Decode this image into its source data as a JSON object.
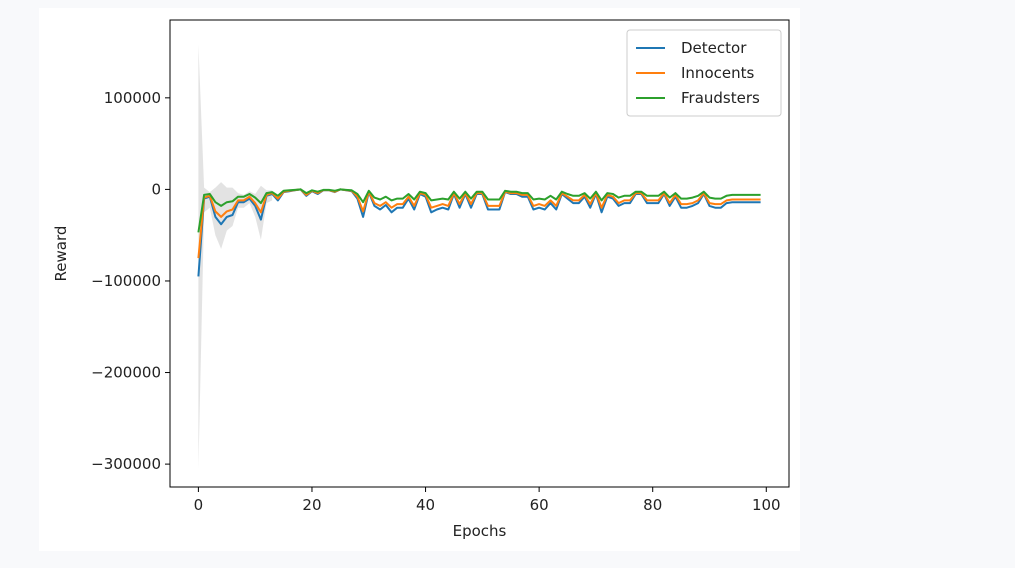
{
  "chart_data": {
    "type": "line",
    "title": "",
    "xlabel": "Epochs",
    "ylabel": "Reward",
    "xlim": [
      -5,
      104
    ],
    "ylim": [
      -325000,
      185000
    ],
    "x_ticks": [
      0,
      20,
      40,
      60,
      80,
      100
    ],
    "y_ticks": [
      100000,
      0,
      -100000,
      -200000,
      -300000
    ],
    "y_tick_labels": [
      "100000",
      "0",
      "−100000",
      "−200000",
      "−300000"
    ],
    "x_tick_labels": [
      "0",
      "20",
      "40",
      "60",
      "80",
      "100"
    ],
    "legend_position": "top-right",
    "band_color": "#cccccc",
    "band_note_x": [
      0,
      1,
      2,
      3,
      4,
      5,
      6,
      7,
      8,
      9,
      10,
      11,
      12,
      13
    ],
    "band_upper": [
      158000,
      2000,
      -3000,
      2000,
      8000,
      2000,
      2000,
      -4000,
      -6000,
      -2000,
      -5000,
      4000,
      -1000,
      -1000
    ],
    "band_lower": [
      -305000,
      -25000,
      -20000,
      -50000,
      -65000,
      -45000,
      -40000,
      -20000,
      -20000,
      -15000,
      -30000,
      -55000,
      -15000,
      -12000
    ],
    "series": [
      {
        "name": "Detector",
        "color": "#1f77b4",
        "values": [
          -95000,
          -10000,
          -8000,
          -30000,
          -38000,
          -30000,
          -28000,
          -14000,
          -14000,
          -10000,
          -18000,
          -33000,
          -7000,
          -5000,
          -12000,
          -3000,
          -2000,
          -1000,
          0,
          -7000,
          -2000,
          -5000,
          -1000,
          -1000,
          -3000,
          0,
          -1000,
          -2000,
          -10000,
          -30000,
          -3000,
          -18000,
          -22000,
          -17000,
          -25000,
          -20000,
          -20000,
          -10000,
          -22000,
          -5000,
          -8000,
          -25000,
          -22000,
          -20000,
          -22000,
          -5000,
          -20000,
          -5000,
          -20000,
          -5000,
          -5000,
          -22000,
          -22000,
          -22000,
          -3000,
          -5000,
          -5000,
          -8000,
          -8000,
          -22000,
          -20000,
          -22000,
          -15000,
          -22000,
          -5000,
          -10000,
          -15000,
          -15000,
          -8000,
          -20000,
          -5000,
          -25000,
          -8000,
          -10000,
          -18000,
          -15000,
          -15000,
          -5000,
          -5000,
          -15000,
          -15000,
          -15000,
          -5000,
          -18000,
          -8000,
          -20000,
          -20000,
          -18000,
          -15000,
          -5000,
          -18000,
          -20000,
          -20000,
          -15000,
          -14000,
          -14000,
          -14000,
          -14000,
          -14000,
          -14000
        ]
      },
      {
        "name": "Innocents",
        "color": "#ff7f0e",
        "values": [
          -75000,
          -9000,
          -7000,
          -24000,
          -30000,
          -24000,
          -22000,
          -12000,
          -12000,
          -8000,
          -15000,
          -25000,
          -6000,
          -4000,
          -10000,
          -2500,
          -1500,
          -800,
          0,
          -6000,
          -1500,
          -4000,
          -800,
          -800,
          -2500,
          0,
          -800,
          -1500,
          -8000,
          -24000,
          -2500,
          -15000,
          -18000,
          -14000,
          -20000,
          -16000,
          -16000,
          -8000,
          -18000,
          -4000,
          -6000,
          -20000,
          -18000,
          -16000,
          -18000,
          -4000,
          -16000,
          -4000,
          -16000,
          -4000,
          -4000,
          -18000,
          -18000,
          -18000,
          -2500,
          -4000,
          -4000,
          -6000,
          -6000,
          -18000,
          -16000,
          -18000,
          -12000,
          -18000,
          -4000,
          -8000,
          -12000,
          -12000,
          -6000,
          -16000,
          -4000,
          -20000,
          -6000,
          -8000,
          -15000,
          -12000,
          -12000,
          -4000,
          -4000,
          -12000,
          -12000,
          -12000,
          -4000,
          -15000,
          -6000,
          -16000,
          -16000,
          -15000,
          -12000,
          -4000,
          -15000,
          -16000,
          -16000,
          -12000,
          -11000,
          -11000,
          -11000,
          -11000,
          -11000,
          -11000
        ]
      },
      {
        "name": "Fraudsters",
        "color": "#2ca02c",
        "values": [
          -47000,
          -6000,
          -5000,
          -14000,
          -18000,
          -14000,
          -13000,
          -8000,
          -8000,
          -5000,
          -9000,
          -15000,
          -4000,
          -3000,
          -7000,
          -1500,
          -1000,
          -500,
          0,
          -4000,
          -1000,
          -2500,
          -500,
          -500,
          -1500,
          0,
          -500,
          -1000,
          -5000,
          -14000,
          -1500,
          -9000,
          -11000,
          -8000,
          -12000,
          -10000,
          -10000,
          -5000,
          -11000,
          -2500,
          -4000,
          -12000,
          -11000,
          -10000,
          -11000,
          -2500,
          -10000,
          -2500,
          -10000,
          -2500,
          -2500,
          -11000,
          -11000,
          -11000,
          -1500,
          -2500,
          -2500,
          -4000,
          -4000,
          -11000,
          -10000,
          -11000,
          -7000,
          -11000,
          -2500,
          -5000,
          -7000,
          -7000,
          -4000,
          -10000,
          -2500,
          -12000,
          -4000,
          -5000,
          -9000,
          -7000,
          -7000,
          -2500,
          -2500,
          -7000,
          -7000,
          -7000,
          -2500,
          -9000,
          -4000,
          -10000,
          -10000,
          -9000,
          -7000,
          -2500,
          -9000,
          -10000,
          -10000,
          -7000,
          -6000,
          -6000,
          -6000,
          -6000,
          -6000,
          -6000
        ]
      }
    ]
  }
}
